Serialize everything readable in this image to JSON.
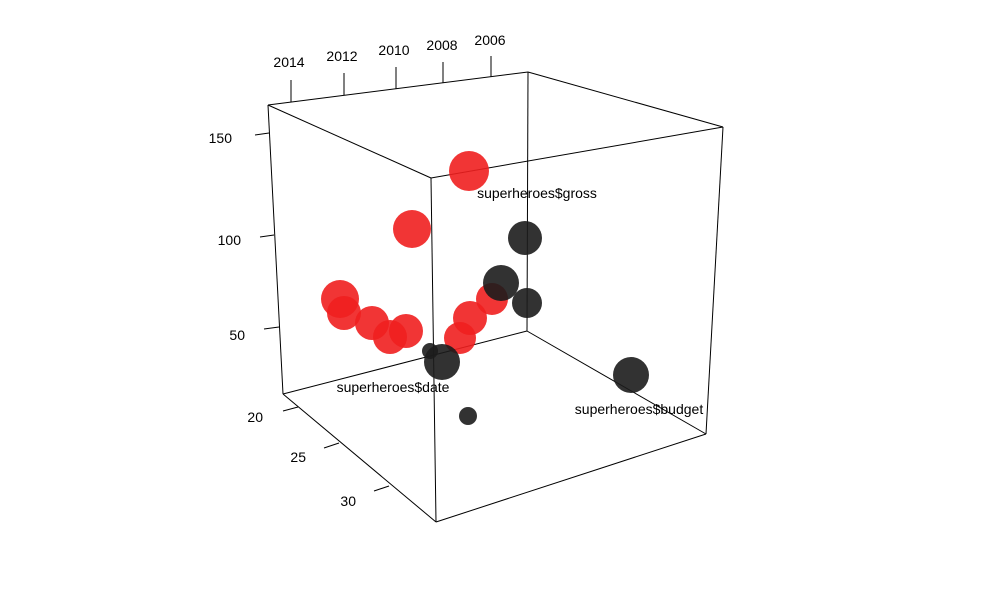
{
  "chart_data": {
    "type": "scatter",
    "title": "",
    "axes": {
      "date": {
        "label": "superheroes$date",
        "ticks": [
          "2014",
          "2012",
          "2010",
          "2008",
          "2006"
        ]
      },
      "gross": {
        "label": "superheroes$gross",
        "ticks": [
          "150",
          "100",
          "50"
        ]
      },
      "budget": {
        "label": "superheroes$budget",
        "ticks": [
          "20",
          "25",
          "30"
        ]
      }
    },
    "grid": false,
    "colors": {
      "red": "#ef1f1f",
      "black": "#1c1c1c",
      "frame": "#000000"
    },
    "series": [
      {
        "color": "red",
        "points": [
          {
            "date": 2006.8,
            "gross": 139
          },
          {
            "date": 2010.2,
            "gross": 98
          },
          {
            "date": 2013.0,
            "gross": 69
          },
          {
            "date": 2012.8,
            "gross": 62
          },
          {
            "date": 2011.7,
            "gross": 57
          },
          {
            "date": 2011.2,
            "gross": 49
          },
          {
            "date": 2010.6,
            "gross": 49
          },
          {
            "date": 2007.6,
            "gross": 67
          },
          {
            "date": 2008.3,
            "gross": 58
          },
          {
            "date": 2009.0,
            "gross": 50
          }
        ]
      },
      {
        "color": "black",
        "points": [
          {
            "budget": 23,
            "gross": 102
          },
          {
            "budget": 21,
            "gross": 80
          },
          {
            "budget": 23,
            "gross": 70
          },
          {
            "budget": 29,
            "gross": 51
          },
          {
            "budget": 29,
            "gross": 52
          },
          {
            "budget": 33,
            "gross": 43
          },
          {
            "budget": 25,
            "gross": 25
          }
        ]
      }
    ]
  }
}
